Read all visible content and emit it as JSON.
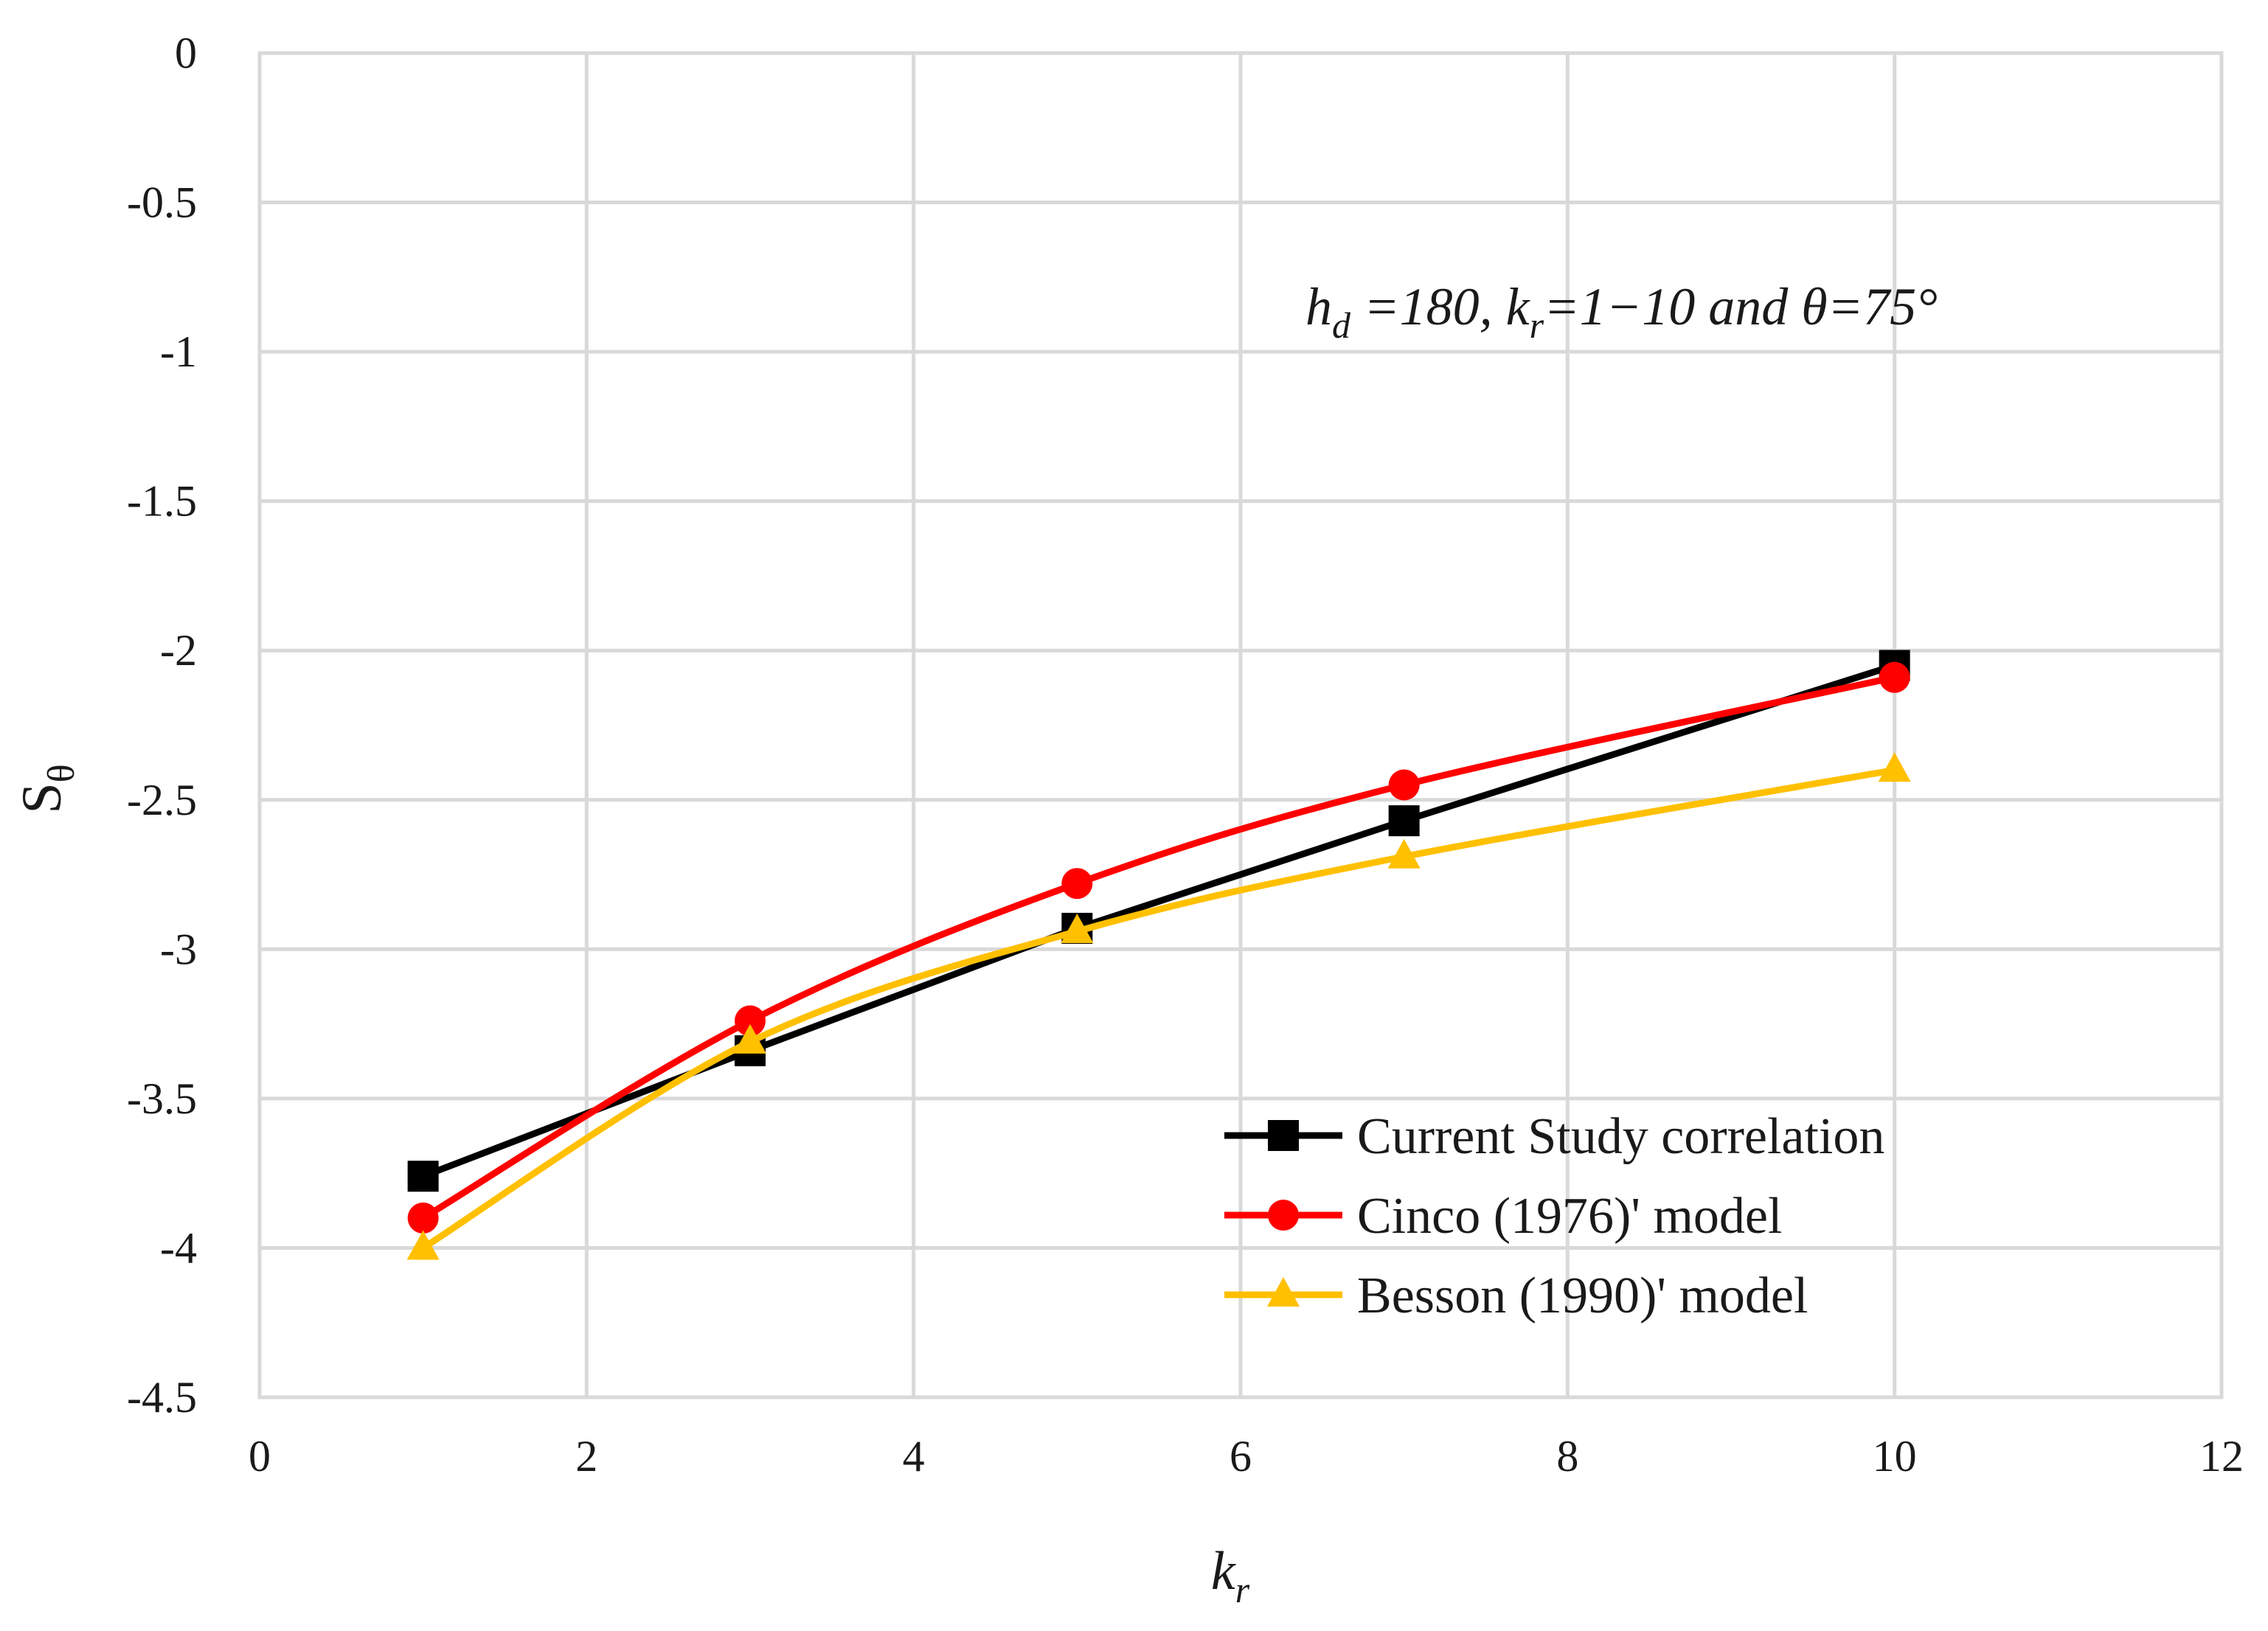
{
  "chart_data": {
    "type": "line",
    "title": "",
    "xlabel": "k",
    "xlabel_sub": "r",
    "ylabel": "S",
    "ylabel_sub": "θ",
    "xlim": [
      0,
      12
    ],
    "ylim": [
      -4.5,
      0
    ],
    "xticks": [
      0,
      2,
      4,
      6,
      8,
      10,
      12
    ],
    "yticks": [
      0,
      -0.5,
      -1,
      -1.5,
      -2,
      -2.5,
      -3,
      -3.5,
      -4,
      -4.5
    ],
    "xtick_labels": [
      "0",
      "2",
      "4",
      "6",
      "8",
      "10",
      "12"
    ],
    "ytick_labels": [
      "0",
      "-0.5",
      "-1",
      "-1.5",
      "-2",
      "-2.5",
      "-3",
      "-3.5",
      "-4",
      "-4.5"
    ],
    "grid": true,
    "legend_position": "bottom-right",
    "annotation": {
      "h": "h",
      "h_sub": "d",
      "part1": " =180, ",
      "k": "k",
      "k_sub": "r",
      "part2": "=1−10 and ",
      "theta": "θ",
      "part3": "=75°"
    },
    "x": [
      1,
      3,
      5,
      7,
      10
    ],
    "series": [
      {
        "name": "Current Study correlation",
        "color": "#000000",
        "marker": "square",
        "smooth": false,
        "values": [
          -3.76,
          -3.34,
          -2.93,
          -2.57,
          -2.05
        ]
      },
      {
        "name": "Cinco (1976)' model",
        "color": "#ff0000",
        "marker": "circle",
        "smooth": true,
        "values": [
          -3.9,
          -3.24,
          -2.78,
          -2.45,
          -2.09
        ]
      },
      {
        "name": "Besson (1990)' model",
        "color": "#ffc000",
        "marker": "triangle",
        "smooth": true,
        "values": [
          -4.0,
          -3.31,
          -2.94,
          -2.69,
          -2.4
        ]
      }
    ]
  }
}
